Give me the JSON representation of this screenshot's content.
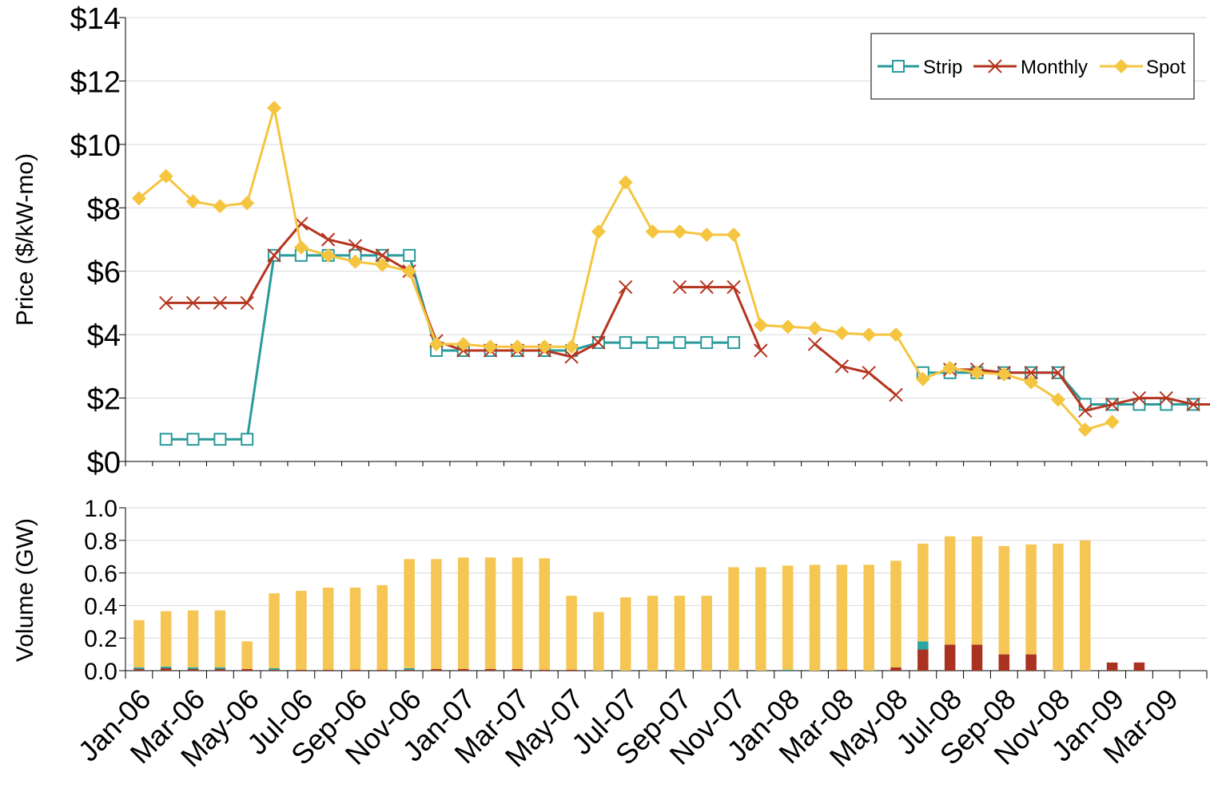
{
  "chart_data": [
    {
      "type": "line",
      "ylabel": "Price ($/kW-mo)",
      "ylim": [
        0,
        14
      ],
      "yticks": [
        "$0",
        "$2",
        "$4",
        "$6",
        "$8",
        "$10",
        "$12",
        "$14"
      ],
      "grid": true,
      "legend": "top-right",
      "x_start": "Jan-06",
      "series": [
        {
          "name": "Strip",
          "color": "#2a9a9a",
          "marker": "open-square",
          "values": [
            null,
            0.7,
            0.7,
            0.7,
            0.7,
            6.5,
            6.5,
            6.5,
            6.5,
            6.5,
            6.5,
            3.5,
            3.5,
            3.5,
            3.5,
            3.5,
            3.5,
            3.75,
            3.75,
            3.75,
            3.75,
            3.75,
            3.75,
            null,
            null,
            null,
            null,
            null,
            null,
            2.8,
            2.8,
            2.8,
            2.8,
            2.8,
            2.8,
            1.8,
            1.8,
            1.8,
            1.8,
            1.8,
            1.8
          ]
        },
        {
          "name": "Monthly",
          "color": "#b5351f",
          "marker": "x",
          "values": [
            null,
            5.0,
            5.0,
            5.0,
            5.0,
            6.5,
            7.5,
            7.0,
            6.8,
            6.5,
            6.0,
            3.8,
            3.5,
            3.5,
            3.5,
            3.5,
            3.3,
            3.75,
            5.5,
            null,
            5.5,
            5.5,
            5.5,
            3.5,
            null,
            3.7,
            3.0,
            2.8,
            2.1,
            null,
            2.9,
            2.9,
            2.8,
            2.8,
            2.8,
            1.6,
            1.8,
            2.0,
            2.0,
            1.8,
            1.8
          ]
        },
        {
          "name": "Spot",
          "color": "#f5c540",
          "marker": "diamond",
          "values": [
            8.3,
            9.0,
            8.2,
            8.05,
            8.15,
            11.15,
            6.75,
            6.5,
            6.3,
            6.2,
            6.0,
            3.7,
            3.7,
            3.62,
            3.62,
            3.62,
            3.62,
            7.25,
            8.8,
            7.25,
            7.25,
            7.15,
            7.15,
            4.3,
            4.25,
            4.2,
            4.05,
            4.0,
            4.0,
            2.6,
            2.95,
            2.8,
            2.75,
            2.5,
            1.95,
            1.0,
            1.25,
            null,
            null,
            null,
            null
          ]
        }
      ]
    },
    {
      "type": "bar",
      "stacked": true,
      "ylabel": "Volume (GW)",
      "ylim": [
        0,
        1.0
      ],
      "yticks": [
        "0.0",
        "0.2",
        "0.4",
        "0.6",
        "0.8",
        "1.0"
      ],
      "grid": true,
      "x_labels": [
        "Jan-06",
        "Mar-06",
        "May-06",
        "Jul-06",
        "Sep-06",
        "Nov-06",
        "Jan-07",
        "Mar-07",
        "May-07",
        "Jul-07",
        "Sep-07",
        "Nov-07",
        "Jan-08",
        "Mar-08",
        "May-08",
        "Jul-08",
        "Sep-08",
        "Nov-08",
        "Jan-09",
        "Mar-09"
      ],
      "series": [
        {
          "name": "Monthly",
          "color": "#a93220",
          "values": [
            0.01,
            0.015,
            0.01,
            0.01,
            0.01,
            0.005,
            0.005,
            0.005,
            0.005,
            0.005,
            0.005,
            0.01,
            0.01,
            0.01,
            0.01,
            0.005,
            0.005,
            0.0,
            0.0,
            0.0,
            0.0,
            0.0,
            0.0,
            0.0,
            0.0,
            0.0,
            0.005,
            0.0,
            0.02,
            0.13,
            0.16,
            0.16,
            0.1,
            0.1,
            0.0,
            0.0,
            0.05,
            0.05,
            0.0,
            0.0
          ]
        },
        {
          "name": "Strip",
          "color": "#2aa5a5",
          "values": [
            0.01,
            0.01,
            0.01,
            0.01,
            0.0,
            0.01,
            0.0,
            0.0,
            0.0,
            0.0,
            0.01,
            0.0,
            0.0,
            0.0,
            0.0,
            0.0,
            0.0,
            0.0,
            0.0,
            0.0,
            0.0,
            0.0,
            0.0,
            0.0,
            0.005,
            0.0,
            0.0,
            0.0,
            0.0,
            0.05,
            0.0,
            0.0,
            0.0,
            0.0,
            0.0,
            0.0,
            0.0,
            0.0,
            0.0,
            0.0
          ]
        },
        {
          "name": "Spot",
          "color": "#f5c654",
          "values": [
            0.29,
            0.34,
            0.35,
            0.35,
            0.17,
            0.46,
            0.485,
            0.505,
            0.505,
            0.52,
            0.67,
            0.675,
            0.685,
            0.685,
            0.685,
            0.685,
            0.455,
            0.36,
            0.45,
            0.46,
            0.46,
            0.46,
            0.635,
            0.635,
            0.64,
            0.65,
            0.645,
            0.65,
            0.655,
            0.6,
            0.665,
            0.665,
            0.665,
            0.675,
            0.78,
            0.8,
            0.0,
            0.0,
            0.0,
            0.0
          ]
        }
      ]
    }
  ]
}
